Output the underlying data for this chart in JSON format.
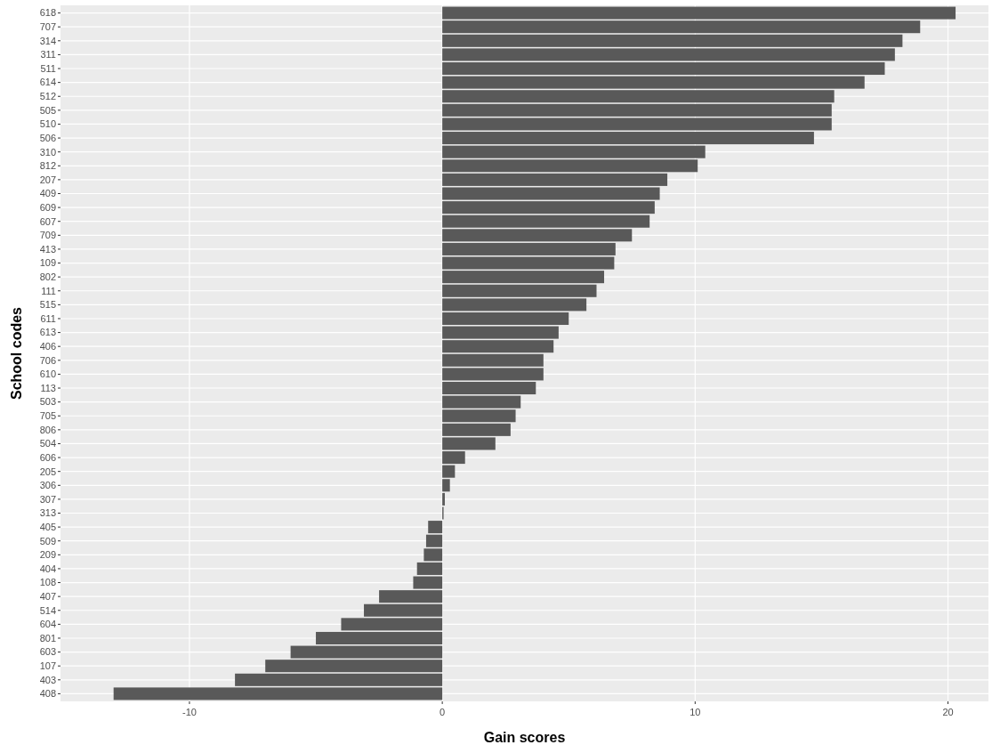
{
  "chart_data": {
    "type": "bar",
    "orientation": "horizontal",
    "xlabel": "Gain scores",
    "ylabel": "School codes",
    "categories": [
      "618",
      "707",
      "314",
      "311",
      "511",
      "614",
      "512",
      "505",
      "510",
      "506",
      "310",
      "812",
      "207",
      "409",
      "609",
      "607",
      "709",
      "413",
      "109",
      "802",
      "111",
      "515",
      "611",
      "613",
      "406",
      "706",
      "610",
      "113",
      "503",
      "705",
      "806",
      "504",
      "606",
      "205",
      "306",
      "307",
      "313",
      "405",
      "509",
      "209",
      "404",
      "108",
      "407",
      "514",
      "604",
      "801",
      "603",
      "107",
      "403",
      "408"
    ],
    "values": [
      20.3,
      18.9,
      18.2,
      17.9,
      17.5,
      16.7,
      15.5,
      15.4,
      15.4,
      14.7,
      10.4,
      10.1,
      8.9,
      8.6,
      8.4,
      8.2,
      7.5,
      6.85,
      6.8,
      6.4,
      6.1,
      5.7,
      5.0,
      4.6,
      4.4,
      4.0,
      4.0,
      3.7,
      3.1,
      2.9,
      2.7,
      2.1,
      0.9,
      0.5,
      0.3,
      0.1,
      0.05,
      -0.56,
      -0.64,
      -0.73,
      -1.0,
      -1.15,
      -2.5,
      -3.1,
      -4.0,
      -5.0,
      -6.0,
      -7.0,
      -8.2,
      -13.0
    ],
    "color": "#595959",
    "xlim": [
      -15.1,
      21.6
    ],
    "xticks": [
      -10,
      0,
      10,
      20
    ],
    "grid": true
  }
}
